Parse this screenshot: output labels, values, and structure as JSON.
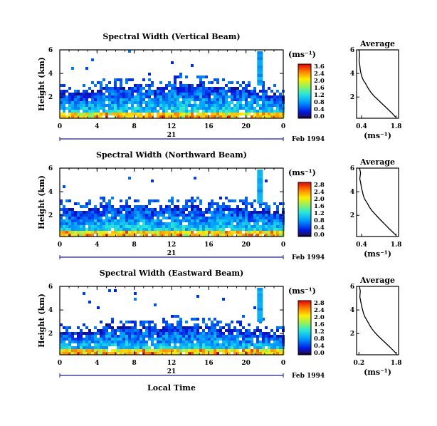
{
  "figure": {
    "date_label": "Feb 1994",
    "day_label": "21",
    "xlabel": "Local Time",
    "ylabel": "Height (km)",
    "colorbar_unit": "(ms⁻¹)",
    "profile_title": "Average",
    "profile_xlabel": "(ms⁻¹)"
  },
  "chart_data": [
    {
      "type": "heatmap",
      "title": "Spectral Width (Vertical Beam)",
      "xlabel": "Local Time",
      "ylabel": "Height (km)",
      "x_ticks": [
        "0",
        "4",
        "8",
        "12",
        "16",
        "20",
        "0"
      ],
      "y_ticks": [
        "6",
        "4",
        "2"
      ],
      "xlim": [
        0,
        24
      ],
      "ylim": [
        0.2,
        6
      ],
      "colorbar": {
        "ticks": [
          "3.6",
          "2.4",
          "2.0",
          "1.6",
          "1.2",
          "0.8",
          "0.4",
          "0.0"
        ],
        "range": [
          0,
          3.6
        ]
      },
      "coverage_top_km": [
        [
          0,
          2.3
        ],
        [
          2,
          2.2
        ],
        [
          4,
          2.4
        ],
        [
          5,
          2.9
        ],
        [
          6,
          2.6
        ],
        [
          8,
          2.9
        ],
        [
          10,
          2.5
        ],
        [
          12,
          3.1
        ],
        [
          14,
          3.0
        ],
        [
          16,
          2.8
        ],
        [
          18,
          2.7
        ],
        [
          20,
          2.6
        ],
        [
          22,
          2.2
        ],
        [
          24,
          2.0
        ]
      ],
      "profile": {
        "title": "Average",
        "xlabel": "(ms⁻¹)",
        "x_ticks": [
          "0.4",
          "1.8"
        ],
        "y_ticks": [
          "6",
          "4",
          "2"
        ],
        "xlim": [
          0.2,
          1.9
        ],
        "ylim": [
          0.2,
          6
        ],
        "x": [
          0.3,
          0.32,
          0.3,
          0.33,
          0.35,
          0.38,
          0.42,
          0.48,
          0.55,
          0.6,
          0.68,
          0.78,
          0.9,
          1.05,
          1.2,
          1.35,
          1.5,
          1.65,
          1.78
        ],
        "y": [
          6.0,
          5.6,
          5.1,
          4.7,
          4.3,
          4.0,
          3.7,
          3.4,
          3.2,
          3.0,
          2.7,
          2.4,
          2.1,
          1.8,
          1.5,
          1.2,
          0.9,
          0.6,
          0.3
        ]
      }
    },
    {
      "type": "heatmap",
      "title": "Spectral Width (Northward Beam)",
      "xlabel": "Local Time",
      "ylabel": "Height (km)",
      "x_ticks": [
        "0",
        "4",
        "8",
        "12",
        "16",
        "20",
        "0"
      ],
      "y_ticks": [
        "6",
        "4",
        "2"
      ],
      "xlim": [
        0,
        24
      ],
      "ylim": [
        0.2,
        6
      ],
      "colorbar": {
        "ticks": [
          "2.8",
          "2.4",
          "2.0",
          "1.6",
          "1.2",
          "0.8",
          "0.4",
          "0.0"
        ],
        "range": [
          0,
          2.8
        ]
      },
      "coverage_top_km": [
        [
          0,
          2.4
        ],
        [
          2,
          2.3
        ],
        [
          4,
          2.5
        ],
        [
          5,
          2.9
        ],
        [
          6,
          2.6
        ],
        [
          8,
          2.7
        ],
        [
          10,
          2.5
        ],
        [
          12,
          2.8
        ],
        [
          14,
          2.7
        ],
        [
          16,
          2.6
        ],
        [
          18,
          2.6
        ],
        [
          20,
          2.5
        ],
        [
          22,
          2.3
        ],
        [
          24,
          2.1
        ]
      ],
      "profile": {
        "title": "Average",
        "xlabel": "(ms⁻¹)",
        "x_ticks": [
          "0.4",
          "1.8"
        ],
        "y_ticks": [
          "6",
          "4",
          "2"
        ],
        "xlim": [
          0.2,
          1.9
        ],
        "ylim": [
          0.2,
          6
        ],
        "x": [
          0.32,
          0.36,
          0.33,
          0.37,
          0.4,
          0.44,
          0.47,
          0.52,
          0.58,
          0.64,
          0.72,
          0.82,
          0.95,
          1.08,
          1.22,
          1.36,
          1.5,
          1.65,
          1.8
        ],
        "y": [
          6.0,
          5.6,
          5.1,
          4.7,
          4.3,
          4.0,
          3.7,
          3.4,
          3.2,
          3.0,
          2.7,
          2.4,
          2.1,
          1.8,
          1.5,
          1.2,
          0.9,
          0.6,
          0.3
        ]
      }
    },
    {
      "type": "heatmap",
      "title": "Spectral Width (Eastward Beam)",
      "xlabel": "Local Time",
      "ylabel": "Height (km)",
      "x_ticks": [
        "0",
        "4",
        "8",
        "12",
        "16",
        "20",
        "0"
      ],
      "y_ticks": [
        "6",
        "4",
        "2"
      ],
      "xlim": [
        0,
        24
      ],
      "ylim": [
        0.2,
        6
      ],
      "colorbar": {
        "ticks": [
          "2.8",
          "2.4",
          "2.0",
          "1.6",
          "1.2",
          "0.8",
          "0.4",
          "0.0"
        ],
        "range": [
          0,
          2.8
        ]
      },
      "coverage_top_km": [
        [
          0,
          1.9
        ],
        [
          2,
          2.0
        ],
        [
          4,
          2.3
        ],
        [
          5,
          2.6
        ],
        [
          6,
          2.5
        ],
        [
          8,
          2.4
        ],
        [
          10,
          2.3
        ],
        [
          12,
          2.6
        ],
        [
          14,
          2.5
        ],
        [
          16,
          2.4
        ],
        [
          18,
          2.3
        ],
        [
          20,
          2.2
        ],
        [
          22,
          2.0
        ],
        [
          24,
          1.8
        ]
      ],
      "profile": {
        "title": "Average",
        "xlabel": "(ms⁻¹)",
        "x_ticks": [
          "0.2",
          "1.8"
        ],
        "y_ticks": [
          "6",
          "4",
          "2"
        ],
        "xlim": [
          0.1,
          1.9
        ],
        "ylim": [
          0.2,
          6
        ],
        "x": [
          0.22,
          0.26,
          0.24,
          0.28,
          0.32,
          0.36,
          0.4,
          0.46,
          0.52,
          0.58,
          0.66,
          0.76,
          0.88,
          1.02,
          1.18,
          1.34,
          1.5,
          1.66,
          1.8
        ],
        "y": [
          6.0,
          5.6,
          5.1,
          4.7,
          4.3,
          4.0,
          3.7,
          3.4,
          3.2,
          3.0,
          2.7,
          2.4,
          2.1,
          1.8,
          1.5,
          1.2,
          0.9,
          0.6,
          0.3
        ]
      }
    }
  ]
}
